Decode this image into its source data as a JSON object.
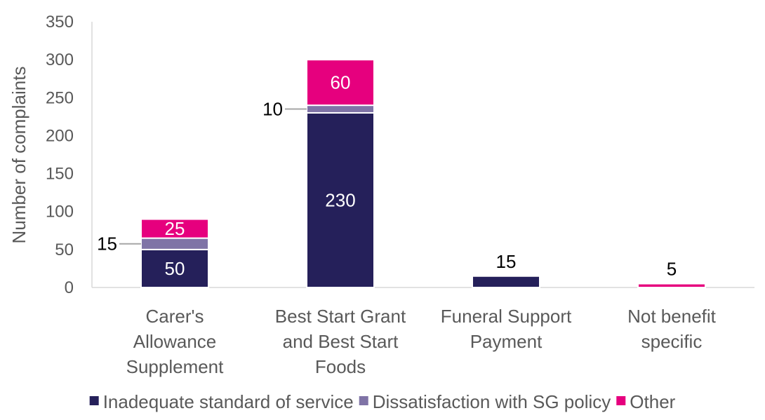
{
  "chart_data": {
    "type": "bar",
    "stacked": true,
    "title": "",
    "xlabel": "",
    "ylabel": "Number of complaints",
    "ylim": [
      0,
      350
    ],
    "yticks": [
      0,
      50,
      100,
      150,
      200,
      250,
      300,
      350
    ],
    "grid": false,
    "legend_position": "bottom",
    "categories": [
      [
        "Carer's",
        "Allowance",
        "Supplement"
      ],
      [
        "Best Start Grant",
        "and Best Start",
        "Foods"
      ],
      [
        "Funeral Support",
        "Payment"
      ],
      [
        "Not benefit",
        "specific"
      ]
    ],
    "series": [
      {
        "name": "Inadequate standard of service",
        "color": "#25205a",
        "values": [
          50,
          230,
          15,
          0
        ]
      },
      {
        "name": "Dissatisfaction with SG policy",
        "color": "#7f73a6",
        "values": [
          15,
          10,
          0,
          0
        ]
      },
      {
        "name": "Other",
        "color": "#e6007e",
        "values": [
          25,
          60,
          0,
          5
        ]
      }
    ],
    "data_labels": [
      {
        "category": 0,
        "series": 0,
        "text": "50",
        "placement": "inside",
        "color": "#ffffff"
      },
      {
        "category": 0,
        "series": 1,
        "text": "15",
        "placement": "left-leader",
        "color": "#000000"
      },
      {
        "category": 0,
        "series": 2,
        "text": "25",
        "placement": "inside",
        "color": "#ffffff"
      },
      {
        "category": 1,
        "series": 0,
        "text": "230",
        "placement": "inside",
        "color": "#ffffff"
      },
      {
        "category": 1,
        "series": 1,
        "text": "10",
        "placement": "left-leader",
        "color": "#000000"
      },
      {
        "category": 1,
        "series": 2,
        "text": "60",
        "placement": "inside",
        "color": "#ffffff"
      },
      {
        "category": 2,
        "series": 0,
        "text": "15",
        "placement": "above",
        "color": "#000000"
      },
      {
        "category": 3,
        "series": 2,
        "text": "5",
        "placement": "above",
        "color": "#000000"
      }
    ]
  }
}
